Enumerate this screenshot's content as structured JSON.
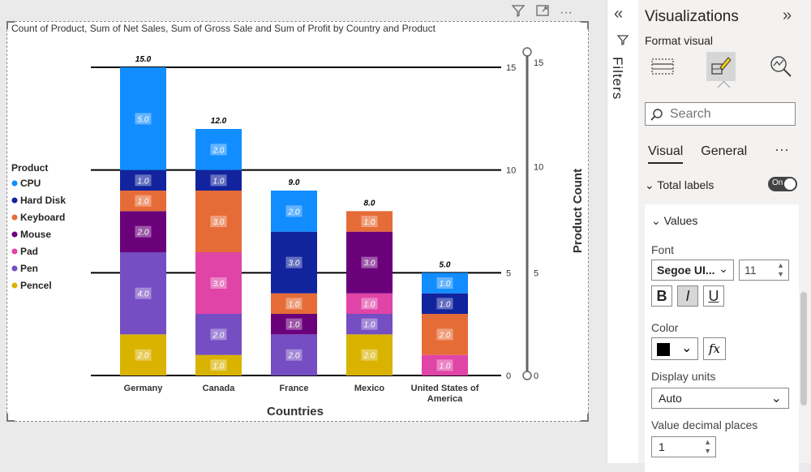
{
  "visual_toolbar": {
    "filter_icon": "filter-icon",
    "focus_icon": "focus-mode-icon",
    "more_icon": "more-options-icon"
  },
  "chart_title": "Count of Product, Sum of Net Sales, Sum of Gross Sale and Sum of Profit by Country and Product",
  "chart_data": {
    "type": "bar",
    "stacked": true,
    "title": "Count of Product, Sum of Net Sales, Sum of Gross Sale and Sum of Profit by Country and Product",
    "xlabel": "Countries",
    "ylabel": "Product Count",
    "categories": [
      "Germany",
      "Canada",
      "France",
      "Mexico",
      "United States of America"
    ],
    "ylim": [
      0,
      15
    ],
    "yticks": [
      0,
      5,
      10,
      15
    ],
    "legend_title": "Product",
    "legend_position": "left",
    "series": [
      {
        "name": "Pencel",
        "color": "#d9b300",
        "values": [
          2,
          1,
          0,
          2,
          0
        ]
      },
      {
        "name": "Pen",
        "color": "#744ec2",
        "values": [
          4,
          2,
          2,
          1,
          0
        ]
      },
      {
        "name": "Pad",
        "color": "#e044a7",
        "values": [
          0,
          3,
          0,
          1,
          1
        ]
      },
      {
        "name": "Mouse",
        "color": "#6b007b",
        "values": [
          2,
          0,
          1,
          3,
          0
        ]
      },
      {
        "name": "Keyboard",
        "color": "#e66c37",
        "values": [
          1,
          3,
          1,
          1,
          2
        ]
      },
      {
        "name": "Hard Disk",
        "color": "#12239e",
        "values": [
          1,
          1,
          3,
          0,
          1
        ]
      },
      {
        "name": "CPU",
        "color": "#118dff",
        "values": [
          5,
          2,
          2,
          0,
          1
        ]
      }
    ],
    "legend_order": [
      "CPU",
      "Hard Disk",
      "Keyboard",
      "Mouse",
      "Pad",
      "Pen",
      "Pencel"
    ],
    "totals": [
      "15.0",
      "12.0",
      "9.0",
      "8.0",
      "5.0"
    ],
    "category_label_lines": [
      [
        "Germany"
      ],
      [
        "Canada"
      ],
      [
        "France"
      ],
      [
        "Mexico"
      ],
      [
        "United States of",
        "America"
      ]
    ],
    "slider_labels": [
      "15",
      "10",
      "5",
      "0"
    ]
  },
  "filters_pane": {
    "label": "Filters",
    "collapse_icon": "chevron-double-left-icon"
  },
  "viz_pane": {
    "title": "Visualizations",
    "subtitle": "Format visual",
    "search_placeholder": "Search",
    "tabs": [
      "Visual",
      "General"
    ],
    "total_labels": {
      "label": "Total labels",
      "toggle": "On"
    },
    "values_section": {
      "header": "Values",
      "font_label": "Font",
      "font_family": "Segoe UI...",
      "font_size": "11",
      "bold": "B",
      "italic": "I",
      "underline": "U",
      "color_label": "Color",
      "color_value": "#000000",
      "fx": "fx",
      "display_units_label": "Display units",
      "display_units_value": "Auto",
      "decimal_label": "Value decimal places",
      "decimal_value": "1"
    }
  }
}
